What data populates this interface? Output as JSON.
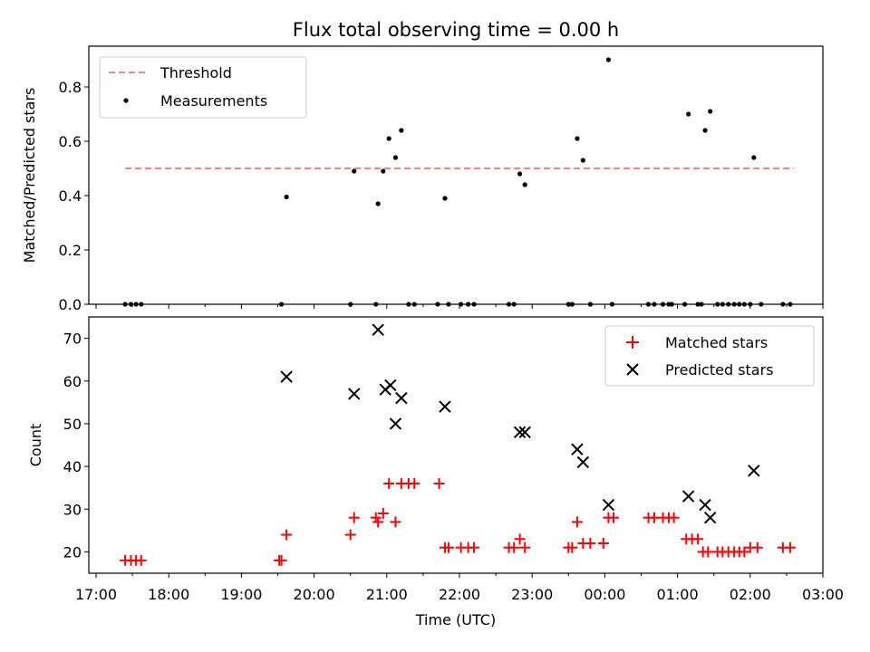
{
  "title": "Flux total observing time = 0.00 h",
  "top_ylabel": "Matched/Predicted stars",
  "bottom_ylabel": "Count",
  "xlabel": "Time (UTC)",
  "colors": {
    "threshold": "#ff8080",
    "measurement": "#000000",
    "matched": "#ff0000",
    "predicted": "#000000"
  },
  "chart_data": [
    {
      "type": "scatter",
      "panel": "top",
      "ylabel": "Matched/Predicted stars",
      "ylim": [
        0,
        0.95
      ],
      "xlim": [
        -0.1,
        10.0
      ],
      "x_tick_labels": [],
      "y_ticks": [
        {
          "v": 0.0,
          "label": "0.0"
        },
        {
          "v": 0.2,
          "label": "0.2"
        },
        {
          "v": 0.4,
          "label": "0.4"
        },
        {
          "v": 0.6,
          "label": "0.6"
        },
        {
          "v": 0.8,
          "label": "0.8"
        }
      ],
      "legend": {
        "position": "upper left",
        "entries": [
          "Threshold",
          "Measurements"
        ]
      },
      "threshold": {
        "name": "Threshold",
        "value": 0.5,
        "x_range": [
          0.4,
          9.6
        ]
      },
      "series": [
        {
          "name": "Measurements",
          "points": [
            [
              0.4,
              0
            ],
            [
              0.48,
              0
            ],
            [
              0.55,
              0
            ],
            [
              0.62,
              0
            ],
            [
              2.55,
              0
            ],
            [
              2.62,
              0.395
            ],
            [
              3.5,
              0
            ],
            [
              3.55,
              0.49
            ],
            [
              3.85,
              0
            ],
            [
              3.88,
              0.37
            ],
            [
              3.95,
              0.49
            ],
            [
              4.03,
              0.61
            ],
            [
              4.12,
              0.54
            ],
            [
              4.2,
              0.64
            ],
            [
              4.3,
              0
            ],
            [
              4.38,
              0
            ],
            [
              4.7,
              0
            ],
            [
              4.8,
              0.39
            ],
            [
              4.85,
              0
            ],
            [
              5.02,
              0
            ],
            [
              5.12,
              0
            ],
            [
              5.2,
              0
            ],
            [
              5.68,
              0
            ],
            [
              5.75,
              0
            ],
            [
              5.83,
              0.48
            ],
            [
              5.9,
              0.44
            ],
            [
              6.5,
              0
            ],
            [
              6.55,
              0
            ],
            [
              6.62,
              0.61
            ],
            [
              6.7,
              0.53
            ],
            [
              6.8,
              0
            ],
            [
              7.1,
              0
            ],
            [
              7.6,
              0
            ],
            [
              7.68,
              0
            ],
            [
              7.8,
              0
            ],
            [
              7.88,
              0
            ],
            [
              7.92,
              0
            ],
            [
              8.1,
              0
            ],
            [
              8.15,
              0.7
            ],
            [
              8.28,
              0
            ],
            [
              8.33,
              0
            ],
            [
              8.38,
              0.64
            ],
            [
              8.45,
              0.71
            ],
            [
              8.55,
              0
            ],
            [
              8.62,
              0
            ],
            [
              8.7,
              0
            ],
            [
              8.78,
              0
            ],
            [
              8.85,
              0
            ],
            [
              8.92,
              0
            ],
            [
              9.0,
              0
            ],
            [
              9.05,
              0.54
            ],
            [
              9.15,
              0
            ],
            [
              9.45,
              0
            ],
            [
              9.55,
              0
            ]
          ]
        }
      ],
      "extra_points": [
        [
          7.05,
          0.9
        ]
      ]
    },
    {
      "type": "scatter",
      "panel": "bottom",
      "xlabel": "Time (UTC)",
      "ylabel": "Count",
      "ylim": [
        15,
        75
      ],
      "xlim": [
        -0.1,
        10.0
      ],
      "x_ticks": [
        {
          "v": 0,
          "label": "17:00"
        },
        {
          "v": 1,
          "label": "18:00"
        },
        {
          "v": 2,
          "label": "19:00"
        },
        {
          "v": 3,
          "label": "20:00"
        },
        {
          "v": 4,
          "label": "21:00"
        },
        {
          "v": 5,
          "label": "22:00"
        },
        {
          "v": 6,
          "label": "23:00"
        },
        {
          "v": 7,
          "label": "00:00"
        },
        {
          "v": 8,
          "label": "01:00"
        },
        {
          "v": 9,
          "label": "02:00"
        },
        {
          "v": 10,
          "label": "03:00"
        }
      ],
      "y_ticks": [
        {
          "v": 20,
          "label": "20"
        },
        {
          "v": 30,
          "label": "30"
        },
        {
          "v": 40,
          "label": "40"
        },
        {
          "v": 50,
          "label": "50"
        },
        {
          "v": 60,
          "label": "60"
        },
        {
          "v": 70,
          "label": "70"
        }
      ],
      "legend": {
        "position": "upper right",
        "entries": [
          "Matched stars",
          "Predicted stars"
        ]
      },
      "series": [
        {
          "name": "Matched stars",
          "marker": "plus",
          "points": [
            [
              0.4,
              18
            ],
            [
              0.48,
              18
            ],
            [
              0.55,
              18
            ],
            [
              0.62,
              18
            ],
            [
              2.52,
              18
            ],
            [
              2.55,
              18
            ],
            [
              2.62,
              24
            ],
            [
              3.5,
              24
            ],
            [
              3.55,
              28
            ],
            [
              3.85,
              28
            ],
            [
              3.88,
              27
            ],
            [
              3.95,
              29
            ],
            [
              4.03,
              36
            ],
            [
              4.12,
              27
            ],
            [
              4.2,
              36
            ],
            [
              4.3,
              36
            ],
            [
              4.38,
              36
            ],
            [
              4.72,
              36
            ],
            [
              4.8,
              21
            ],
            [
              4.85,
              21
            ],
            [
              5.02,
              21
            ],
            [
              5.12,
              21
            ],
            [
              5.2,
              21
            ],
            [
              5.68,
              21
            ],
            [
              5.75,
              21
            ],
            [
              5.83,
              23
            ],
            [
              5.9,
              21
            ],
            [
              6.5,
              21
            ],
            [
              6.55,
              21
            ],
            [
              6.62,
              27
            ],
            [
              6.7,
              22
            ],
            [
              6.8,
              22
            ],
            [
              6.98,
              22
            ],
            [
              7.05,
              28
            ],
            [
              7.12,
              28
            ],
            [
              7.6,
              28
            ],
            [
              7.68,
              28
            ],
            [
              7.8,
              28
            ],
            [
              7.88,
              28
            ],
            [
              7.95,
              28
            ],
            [
              8.12,
              23
            ],
            [
              8.2,
              23
            ],
            [
              8.28,
              23
            ],
            [
              8.35,
              20
            ],
            [
              8.42,
              20
            ],
            [
              8.55,
              20
            ],
            [
              8.62,
              20
            ],
            [
              8.7,
              20
            ],
            [
              8.78,
              20
            ],
            [
              8.85,
              20
            ],
            [
              8.92,
              20
            ],
            [
              9.0,
              21
            ],
            [
              9.1,
              21
            ],
            [
              9.45,
              21
            ],
            [
              9.55,
              21
            ]
          ]
        },
        {
          "name": "Predicted stars",
          "marker": "cross",
          "points": [
            [
              2.62,
              61
            ],
            [
              3.55,
              57
            ],
            [
              3.88,
              72
            ],
            [
              3.98,
              58
            ],
            [
              4.05,
              59
            ],
            [
              4.12,
              50
            ],
            [
              4.2,
              56
            ],
            [
              4.8,
              54
            ],
            [
              5.83,
              48
            ],
            [
              5.9,
              48
            ],
            [
              6.62,
              44
            ],
            [
              6.7,
              41
            ],
            [
              7.05,
              31
            ],
            [
              8.15,
              33
            ],
            [
              8.38,
              31
            ],
            [
              8.45,
              28
            ],
            [
              9.05,
              39
            ]
          ]
        }
      ]
    }
  ]
}
